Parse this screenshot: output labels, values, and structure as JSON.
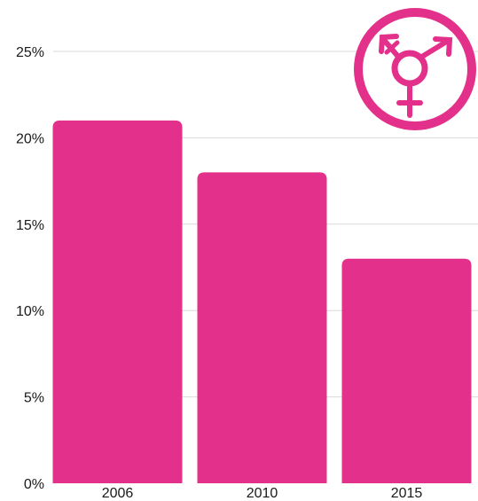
{
  "chart_data": {
    "type": "bar",
    "categories": [
      "2006",
      "2010",
      "2015"
    ],
    "values": [
      21,
      18,
      13
    ],
    "y_ticks": [
      "0%",
      "5%",
      "10%",
      "15%",
      "20%",
      "25%"
    ],
    "y_tick_values": [
      0,
      5,
      10,
      15,
      20,
      25
    ],
    "ylim": [
      0,
      25
    ],
    "grid": true,
    "bar_color": "#e3308a"
  },
  "icon": {
    "name": "transgender-symbol-icon",
    "color": "#e3308a"
  }
}
